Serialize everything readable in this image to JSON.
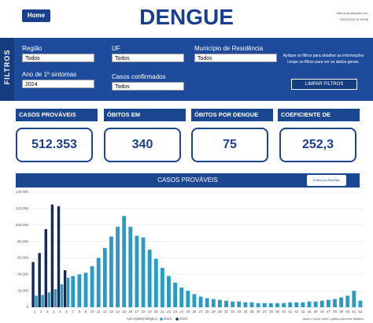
{
  "header": {
    "home": "Home",
    "title": "DENGUE",
    "update_label": "Última atualização em:",
    "update_time": "13/02/2024 21:09:56"
  },
  "filters": {
    "title": "FILTROS",
    "items": [
      {
        "label": "Região",
        "value": "Todos"
      },
      {
        "label": "UF",
        "value": "Todos"
      },
      {
        "label": "Município de Residência",
        "value": "Todos"
      },
      {
        "label": "Ano de 1º sintomas",
        "value": "2024"
      },
      {
        "label": "Casos confirmados",
        "value": "Todos"
      }
    ],
    "note_1": "Aplique os filtros para detalhar as informações",
    "note_2": "Limpe os filtros para ver os dados gerais.",
    "clear": "LIMPAR FILTROS"
  },
  "cards": [
    {
      "label": "CASOS PROVÁVEIS",
      "value": "512.353"
    },
    {
      "label": "ÓBITOS EM INVESTIGAÇÃO",
      "value": "340"
    },
    {
      "label": "ÓBITOS POR DENGUE",
      "value": "75"
    },
    {
      "label": "COEFICIENTE DE INCIDÊNCIA",
      "value": "252,3"
    }
  ],
  "chart_data": {
    "type": "bar",
    "title": "CASOS PROVÁVEIS",
    "toggle": "Exibir por Ano/Mês",
    "categories": [
      "1",
      "2",
      "3",
      "4",
      "5",
      "6",
      "7",
      "8",
      "9",
      "10",
      "11",
      "12",
      "13",
      "14",
      "15",
      "16",
      "17",
      "18",
      "19",
      "20",
      "21",
      "22",
      "23",
      "24",
      "25",
      "26",
      "27",
      "28",
      "29",
      "30",
      "31",
      "32",
      "33",
      "34",
      "35",
      "36",
      "37",
      "38",
      "39",
      "40",
      "41",
      "42",
      "43",
      "44",
      "45",
      "46",
      "47",
      "48",
      "49",
      "50",
      "51",
      "52"
    ],
    "series": [
      {
        "name": "2023",
        "color": "#2a9bc4",
        "values": [
          14000,
          15000,
          18000,
          22000,
          28000,
          36000,
          38000,
          40000,
          42000,
          50000,
          60000,
          72000,
          86000,
          98000,
          111000,
          98000,
          87000,
          85000,
          70000,
          59000,
          48000,
          38000,
          30000,
          24000,
          20000,
          16000,
          13000,
          11000,
          10000,
          9000,
          8000,
          7000,
          7000,
          6000,
          6000,
          5000,
          5000,
          5000,
          5000,
          5000,
          6000,
          6000,
          6000,
          7000,
          7000,
          8000,
          9000,
          10000,
          12000,
          14000,
          20000,
          8000
        ]
      },
      {
        "name": "2024",
        "color": "#14275e",
        "values": [
          55000,
          66000,
          95000,
          125000,
          123000,
          45000,
          null,
          null,
          null,
          null,
          null,
          null,
          null,
          null,
          null,
          null,
          null,
          null,
          null,
          null,
          null,
          null,
          null,
          null,
          null,
          null,
          null,
          null,
          null,
          null,
          null,
          null,
          null,
          null,
          null,
          null,
          null,
          null,
          null,
          null,
          null,
          null,
          null,
          null,
          null,
          null,
          null,
          null,
          null,
          null,
          null,
          null
        ]
      }
    ],
    "ylim": [
      0,
      140000
    ],
    "yticks": [
      0,
      {
        "value": 20000,
        "label": "20,000"
      },
      {
        "value": 40000,
        "label": "40,000"
      },
      {
        "value": 60000,
        "label": "60,000"
      },
      {
        "value": 80000,
        "label": "80,000"
      },
      {
        "value": 100000,
        "label": "100,000"
      },
      {
        "value": 120000,
        "label": "120,000"
      },
      {
        "value": 140000,
        "label": "140,000"
      }
    ],
    "grid": true,
    "legend_title": "Ano epidemiológico",
    "legend": "bottom",
    "note": "passe o cursor sobre o gráfico para mais detalhes"
  }
}
